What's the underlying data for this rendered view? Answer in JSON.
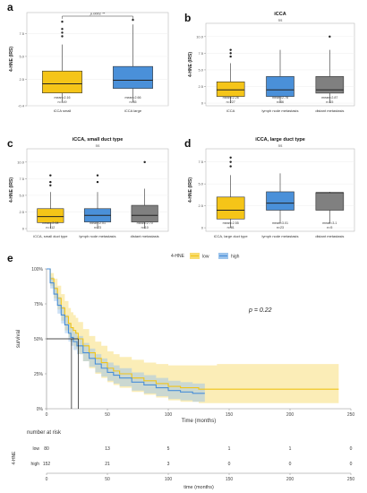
{
  "chart_data": [
    {
      "panel": "a",
      "type": "box",
      "title": "",
      "subtitle": "",
      "ylabel": "4-HNE (IRS)",
      "ylim": [
        -0.4,
        9.8
      ],
      "yticks": [
        -0.4,
        2.5,
        5.0,
        7.5
      ],
      "yticklabels": [
        "-0.4",
        "2.5",
        "5.0",
        "7.5"
      ],
      "signif": "p.0001 **",
      "categories": [
        "iCCA small",
        "iCCA large"
      ],
      "fills": [
        "#f5c518",
        "#4a90d9"
      ],
      "boxes": [
        {
          "min": 0,
          "q1": 1.0,
          "median": 2.0,
          "q3": 3.4,
          "max": 6.3,
          "outliers": [
            7.2,
            7.6,
            8.0,
            8.8
          ]
        },
        {
          "min": 0,
          "q1": 1.5,
          "median": 2.4,
          "q3": 3.9,
          "max": 8.5,
          "outliers": [
            9.0
          ]
        }
      ],
      "annotations": [
        [
          "mean=2.16",
          "n=149"
        ],
        [
          "mean=2.66",
          "n=85"
        ]
      ]
    },
    {
      "panel": "b",
      "type": "box",
      "title": "iCCA",
      "subtitle": "ns",
      "ylabel": "4-HNE (IRS)",
      "ylim": [
        -0.4,
        12
      ],
      "yticks": [
        0,
        2.5,
        5.0,
        7.5,
        10.0
      ],
      "yticklabels": [
        "0",
        "2.5",
        "5.0",
        "7.5",
        "10.0"
      ],
      "signif": "",
      "categories": [
        "iCCA",
        "lymph node metastasis",
        "distant metastasis"
      ],
      "fills": [
        "#f5c518",
        "#4a90d9",
        "#808080"
      ],
      "boxes": [
        {
          "min": 0,
          "q1": 1.0,
          "median": 2.0,
          "q3": 3.2,
          "max": 6.0,
          "outliers": [
            7.0,
            7.5,
            8.0
          ]
        },
        {
          "min": 0,
          "q1": 1.0,
          "median": 2.0,
          "q3": 4.0,
          "max": 8.0,
          "outliers": []
        },
        {
          "min": 0,
          "q1": 1.5,
          "median": 2.0,
          "q3": 4.0,
          "max": 8.0,
          "outliers": [
            10.0
          ]
        }
      ],
      "annotations": [
        [
          "mean=2.26",
          "n=227"
        ],
        [
          "mean=2.78",
          "n=46"
        ],
        [
          "mean=2.87",
          "n=15"
        ]
      ]
    },
    {
      "panel": "c",
      "type": "box",
      "title": "iCCA, small duct type",
      "subtitle": "ns",
      "ylabel": "4-HNE (IRS)",
      "ylim": [
        -0.4,
        12
      ],
      "yticks": [
        0,
        2.5,
        5.0,
        7.5,
        10.0
      ],
      "yticklabels": [
        "0",
        "2.5",
        "5.0",
        "7.5",
        "10.0"
      ],
      "signif": "",
      "categories": [
        "iCCA, small duct type",
        "lymph node metastasis",
        "distant metastasis"
      ],
      "fills": [
        "#f5c518",
        "#4a90d9",
        "#808080"
      ],
      "boxes": [
        {
          "min": 0,
          "q1": 0.9,
          "median": 1.8,
          "q3": 3.0,
          "max": 5.5,
          "outliers": [
            6.5,
            7.0,
            8.0
          ]
        },
        {
          "min": 0,
          "q1": 1.0,
          "median": 2.0,
          "q3": 3.0,
          "max": 5.5,
          "outliers": [
            7.0,
            8.0
          ]
        },
        {
          "min": 0,
          "q1": 1.0,
          "median": 2.0,
          "q3": 3.5,
          "max": 6.0,
          "outliers": [
            10.0
          ]
        }
      ],
      "annotations": [
        [
          "mean=2.08",
          "n=112"
        ],
        [
          "mean=2.01",
          "n=23"
        ],
        [
          "mean=2.70",
          "n=10"
        ]
      ]
    },
    {
      "panel": "d",
      "type": "box",
      "title": "iCCA, large duct type",
      "subtitle": "ns",
      "ylabel": "4-HNE (IRS)",
      "ylim": [
        -0.4,
        9
      ],
      "yticks": [
        0,
        2.5,
        5.0,
        7.5
      ],
      "yticklabels": [
        "0",
        "2.5",
        "5.0",
        "7.5"
      ],
      "signif": "",
      "categories": [
        "iCCA, large duct type",
        "lymph node metastasis",
        "distant metastasis"
      ],
      "fills": [
        "#f5c518",
        "#4a90d9",
        "#808080"
      ],
      "boxes": [
        {
          "min": 0,
          "q1": 1.0,
          "median": 2.0,
          "q3": 3.5,
          "max": 6.0,
          "outliers": [
            7.0,
            7.5,
            8.0
          ]
        },
        {
          "min": 0.5,
          "q1": 2.0,
          "median": 2.8,
          "q3": 4.1,
          "max": 6.2,
          "outliers": []
        },
        {
          "min": 0.5,
          "q1": 2.0,
          "median": 4.0,
          "q3": 4.0,
          "max": 4.1,
          "outliers": []
        }
      ],
      "annotations": [
        [
          "mean=2.55",
          "n=81"
        ],
        [
          "mean=3.01",
          "n=23"
        ],
        [
          "mean=3.1",
          "n=5"
        ]
      ]
    },
    {
      "panel": "e",
      "type": "line",
      "subtype": "kaplan-meier",
      "legend_title": "4-HNE",
      "legend_position": "top",
      "xlabel": "Time (months)",
      "ylabel": "survival",
      "xlim": [
        0,
        250
      ],
      "ylim": [
        0,
        1
      ],
      "xticks": [
        0,
        50,
        100,
        150,
        200,
        250
      ],
      "yticklabels": [
        "0%",
        "25%",
        "50%",
        "75%",
        "100%"
      ],
      "pvalue": "p = 0.22",
      "median_survival": [
        {
          "series": "high",
          "x": 20.5
        },
        {
          "series": "low",
          "x": 26
        }
      ],
      "series": [
        {
          "name": "low",
          "color": "#f0c419",
          "band": "#f8dc70",
          "x": [
            0,
            3,
            6,
            9,
            12,
            15,
            18,
            20,
            22,
            24,
            26,
            30,
            35,
            40,
            45,
            50,
            55,
            60,
            70,
            80,
            90,
            100,
            110,
            125,
            140,
            150,
            175,
            200,
            225,
            240
          ],
          "y": [
            1.0,
            0.93,
            0.86,
            0.79,
            0.72,
            0.66,
            0.61,
            0.58,
            0.56,
            0.54,
            0.5,
            0.45,
            0.4,
            0.36,
            0.33,
            0.29,
            0.27,
            0.25,
            0.22,
            0.2,
            0.18,
            0.16,
            0.15,
            0.14,
            0.14,
            0.14,
            0.14,
            0.14,
            0.14,
            0.14
          ],
          "lo": [
            1.0,
            0.88,
            0.79,
            0.71,
            0.63,
            0.56,
            0.51,
            0.48,
            0.45,
            0.43,
            0.39,
            0.34,
            0.29,
            0.25,
            0.22,
            0.19,
            0.17,
            0.15,
            0.12,
            0.1,
            0.08,
            0.06,
            0.05,
            0.04,
            0.04,
            0.04,
            0.04,
            0.04,
            0.04,
            0.04
          ],
          "hi": [
            1.0,
            0.97,
            0.93,
            0.88,
            0.82,
            0.77,
            0.72,
            0.69,
            0.67,
            0.65,
            0.62,
            0.57,
            0.52,
            0.48,
            0.45,
            0.41,
            0.39,
            0.37,
            0.35,
            0.33,
            0.32,
            0.31,
            0.31,
            0.31,
            0.32,
            0.32,
            0.32,
            0.32,
            0.32,
            0.32
          ]
        },
        {
          "name": "high",
          "color": "#4a8fd8",
          "band": "#9cc4ec",
          "x": [
            0,
            3,
            6,
            9,
            12,
            15,
            18,
            20,
            22,
            25,
            30,
            35,
            40,
            45,
            50,
            55,
            60,
            70,
            80,
            90,
            100,
            110,
            120,
            130
          ],
          "y": [
            1.0,
            0.9,
            0.82,
            0.74,
            0.67,
            0.6,
            0.54,
            0.51,
            0.48,
            0.45,
            0.4,
            0.36,
            0.32,
            0.29,
            0.26,
            0.24,
            0.22,
            0.19,
            0.17,
            0.15,
            0.13,
            0.12,
            0.11,
            0.11
          ],
          "lo": [
            1.0,
            0.86,
            0.77,
            0.68,
            0.61,
            0.54,
            0.48,
            0.45,
            0.42,
            0.39,
            0.34,
            0.3,
            0.26,
            0.23,
            0.2,
            0.18,
            0.16,
            0.13,
            0.11,
            0.09,
            0.07,
            0.06,
            0.05,
            0.05
          ],
          "hi": [
            1.0,
            0.94,
            0.87,
            0.8,
            0.73,
            0.67,
            0.61,
            0.58,
            0.55,
            0.52,
            0.47,
            0.43,
            0.39,
            0.36,
            0.33,
            0.31,
            0.29,
            0.26,
            0.24,
            0.22,
            0.2,
            0.19,
            0.18,
            0.18
          ]
        }
      ],
      "risk_table": {
        "title": "number at risk",
        "ylabel": "4-HNE",
        "xlabel": "time (months)",
        "times": [
          0,
          50,
          100,
          150,
          200,
          250
        ],
        "rows": [
          {
            "name": "low",
            "values": [
              80,
              13,
              5,
              1,
              1,
              0
            ]
          },
          {
            "name": "high",
            "values": [
              152,
              21,
              3,
              0,
              0,
              0
            ]
          }
        ]
      }
    }
  ]
}
